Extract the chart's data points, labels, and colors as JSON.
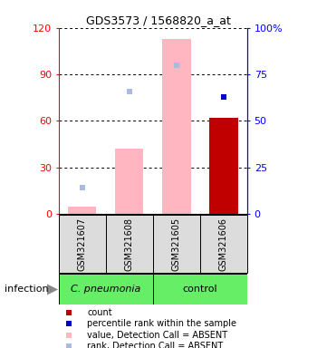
{
  "title": "GDS3573 / 1568820_a_at",
  "samples": [
    "GSM321607",
    "GSM321608",
    "GSM321605",
    "GSM321606"
  ],
  "ylim_left": [
    0,
    120
  ],
  "ylim_right": [
    0,
    100
  ],
  "yticklabels_left": [
    "0",
    "30",
    "60",
    "90",
    "120"
  ],
  "yticklabels_right": [
    "0",
    "25",
    "50",
    "75",
    "100%"
  ],
  "value_bars": [
    5,
    42,
    113,
    0
  ],
  "value_bar_color_absent": "#FFB6C1",
  "count_bars": [
    0,
    0,
    0,
    62
  ],
  "count_bar_color": "#C00000",
  "rank_dots_absent": [
    14,
    66,
    80,
    0
  ],
  "rank_dot_color_absent": "#AABBDD",
  "percentile_dot_present": [
    0,
    0,
    0,
    63
  ],
  "percentile_dot_color_present": "#0000CC",
  "detection_absent": [
    true,
    true,
    true,
    false
  ],
  "bg_color": "#DCDCDC",
  "group_bg": "#66EE66",
  "legend_colors": [
    "#C00000",
    "#0000CC",
    "#FFB6C1",
    "#AABBDD"
  ],
  "legend_labels": [
    "count",
    "percentile rank within the sample",
    "value, Detection Call = ABSENT",
    "rank, Detection Call = ABSENT"
  ]
}
